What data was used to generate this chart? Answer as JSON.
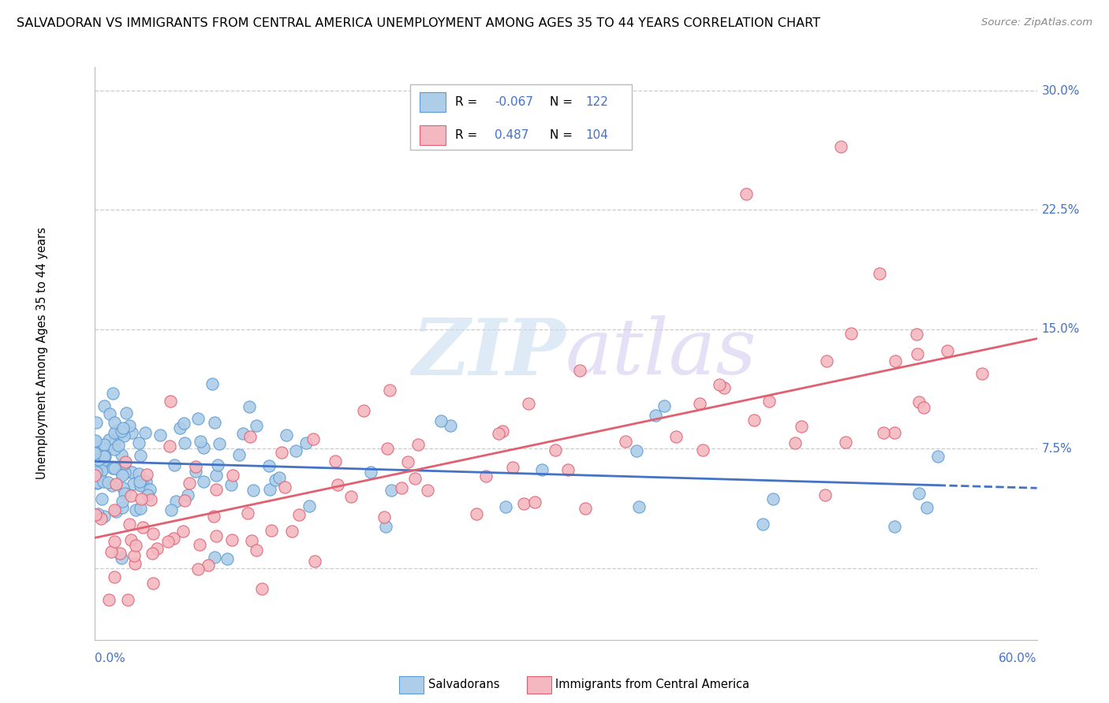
{
  "title": "SALVADORAN VS IMMIGRANTS FROM CENTRAL AMERICA UNEMPLOYMENT AMONG AGES 35 TO 44 YEARS CORRELATION CHART",
  "source": "Source: ZipAtlas.com",
  "ylabel": "Unemployment Among Ages 35 to 44 years",
  "series": [
    {
      "name": "Salvadorans",
      "R": -0.067,
      "N": 122,
      "color": "#aecde8",
      "edge_color": "#5b9bd5",
      "line_color": "#4472c4",
      "line_style": "--"
    },
    {
      "name": "Immigrants from Central America",
      "R": 0.487,
      "N": 104,
      "color": "#f4b8c1",
      "edge_color": "#e06070",
      "line_color": "#e06070",
      "line_style": "-"
    }
  ],
  "xlim": [
    0.0,
    0.6
  ],
  "ylim": [
    -0.045,
    0.315
  ],
  "ytick_vals": [
    0.0,
    0.075,
    0.15,
    0.225,
    0.3
  ],
  "ytick_labels_right": [
    "",
    "7.5%",
    "15.0%",
    "22.5%",
    "30.0%"
  ],
  "grid_color": "#cccccc",
  "background_color": "#ffffff",
  "watermark_zip": "ZIP",
  "watermark_atlas": "atlas",
  "title_fontsize": 11.5,
  "label_color": "#4472c4",
  "legend_R_color": "#4472c4",
  "legend_N_color": "#4472c4"
}
